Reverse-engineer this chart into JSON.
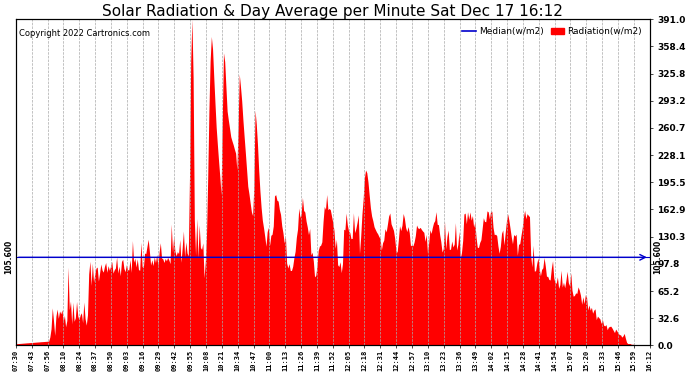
{
  "title": "Solar Radiation & Day Average per Minute Sat Dec 17 16:12",
  "copyright_text": "Copyright 2022 Cartronics.com",
  "legend_median": "Median(w/m2)",
  "legend_radiation": "Radiation(w/m2)",
  "median_value": 105.6,
  "y_right_labels": [
    0.0,
    32.6,
    65.2,
    97.8,
    130.3,
    162.9,
    195.5,
    228.1,
    260.7,
    293.2,
    325.8,
    358.4,
    391.0
  ],
  "background_color": "#ffffff",
  "bar_color": "#ff0000",
  "median_line_color": "#0000cc",
  "grid_color": "#aaaaaa",
  "title_color": "#000000",
  "title_fontsize": 11,
  "x_labels": [
    "07:30",
    "07:43",
    "07:56",
    "08:10",
    "08:24",
    "08:37",
    "08:50",
    "09:03",
    "09:16",
    "09:29",
    "09:42",
    "09:55",
    "10:08",
    "10:21",
    "10:34",
    "10:47",
    "11:00",
    "11:13",
    "11:26",
    "11:39",
    "11:52",
    "12:05",
    "12:18",
    "12:31",
    "12:44",
    "12:57",
    "13:10",
    "13:23",
    "13:36",
    "13:49",
    "14:02",
    "14:15",
    "14:28",
    "14:41",
    "14:54",
    "15:07",
    "15:20",
    "15:33",
    "15:46",
    "15:59",
    "16:12"
  ],
  "y_max": 391.0,
  "median_label": "105.600"
}
